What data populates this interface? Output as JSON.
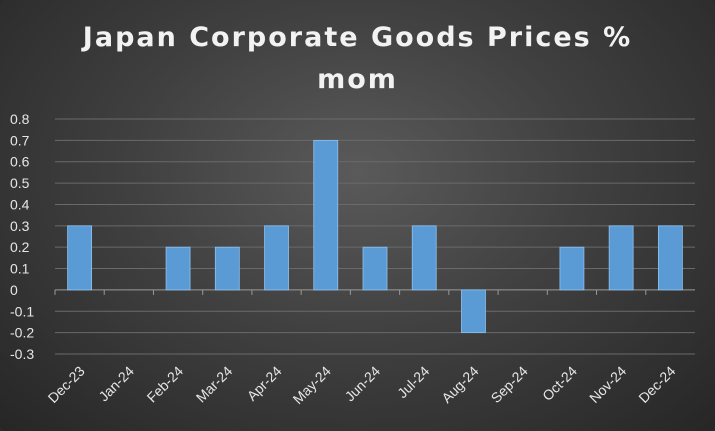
{
  "chart_data": {
    "type": "bar",
    "title_line1": "Japan Corporate Goods Prices %",
    "title_line2": "mom",
    "xlabel": "",
    "ylabel": "",
    "categories": [
      "Dec-23",
      "Jan-24",
      "Feb-24",
      "Mar-24",
      "Apr-24",
      "May-24",
      "Jun-24",
      "Jul-24",
      "Aug-24",
      "Sep-24",
      "Oct-24",
      "Nov-24",
      "Dec-24"
    ],
    "values": [
      0.3,
      0,
      0.2,
      0.2,
      0.3,
      0.7,
      0.2,
      0.3,
      -0.2,
      0,
      0.2,
      0.3,
      0.3
    ],
    "ylim": [
      -0.3,
      0.8
    ],
    "yticks": [
      "0.8",
      "0.7",
      "0.6",
      "0.5",
      "0.4",
      "0.3",
      "0.2",
      "0.1",
      "0",
      "-0.1",
      "-0.2",
      "-0.3"
    ],
    "grid": true,
    "legend": "none",
    "colors": {
      "bar": "#5b9bd5",
      "bar_edge": "#8fc1ee",
      "grid": "#6a6a6a",
      "text": "#e6e6e6"
    }
  }
}
